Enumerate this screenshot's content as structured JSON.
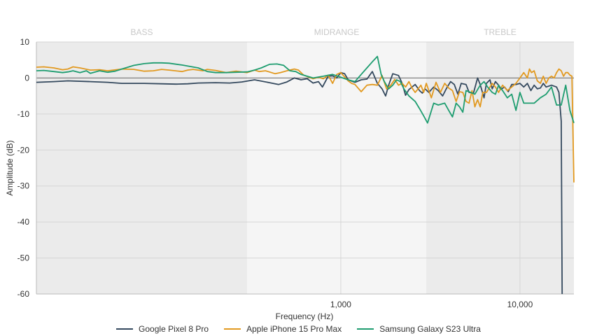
{
  "chart_data": {
    "type": "line",
    "xlabel": "Frequency (Hz)",
    "ylabel": "Amplitude (dB)",
    "x_scale": "log",
    "xlim": [
      20,
      20000
    ],
    "ylim": [
      -60,
      10
    ],
    "x_ticks": [
      {
        "value": 1000,
        "label": "1,000"
      },
      {
        "value": 10000,
        "label": "10,000"
      }
    ],
    "y_ticks": [
      {
        "value": 10,
        "label": "10"
      },
      {
        "value": 0,
        "label": "0"
      },
      {
        "value": -10,
        "label": "-10"
      },
      {
        "value": -20,
        "label": "-20"
      },
      {
        "value": -30,
        "label": "-30"
      },
      {
        "value": -40,
        "label": "-40"
      },
      {
        "value": -50,
        "label": "-50"
      },
      {
        "value": -60,
        "label": "-60"
      }
    ],
    "bands": [
      {
        "label": "BASS",
        "from": 20,
        "to": 300,
        "color": "#ebebeb"
      },
      {
        "label": "MIDRANGE",
        "from": 300,
        "to": 3000,
        "color": "#f5f5f5"
      },
      {
        "label": "TREBLE",
        "from": 3000,
        "to": 20000,
        "color": "#ebebeb"
      }
    ],
    "grid": true,
    "legend_position": "bottom",
    "series": [
      {
        "name": "Google Pixel 8 Pro",
        "color": "#34495e",
        "points": [
          [
            20,
            -1.2
          ],
          [
            25,
            -1.0
          ],
          [
            30,
            -0.8
          ],
          [
            40,
            -1.0
          ],
          [
            50,
            -1.2
          ],
          [
            60,
            -1.5
          ],
          [
            70,
            -1.5
          ],
          [
            80,
            -1.5
          ],
          [
            100,
            -1.6
          ],
          [
            120,
            -1.7
          ],
          [
            140,
            -1.6
          ],
          [
            160,
            -1.4
          ],
          [
            200,
            -1.3
          ],
          [
            240,
            -1.4
          ],
          [
            280,
            -1.1
          ],
          [
            330,
            -0.5
          ],
          [
            400,
            -1.3
          ],
          [
            450,
            -1.8
          ],
          [
            500,
            -1.1
          ],
          [
            550,
            0.0
          ],
          [
            600,
            -0.5
          ],
          [
            650,
            -0.2
          ],
          [
            700,
            -1.4
          ],
          [
            750,
            -1.0
          ],
          [
            790,
            -2.5
          ],
          [
            850,
            0.5
          ],
          [
            900,
            0.6
          ],
          [
            950,
            0.0
          ],
          [
            1000,
            1.5
          ],
          [
            1050,
            1.2
          ],
          [
            1100,
            -0.5
          ],
          [
            1200,
            -1.2
          ],
          [
            1300,
            -0.5
          ],
          [
            1400,
            -0.3
          ],
          [
            1500,
            1.8
          ],
          [
            1600,
            -1.5
          ],
          [
            1700,
            -3.0
          ],
          [
            1780,
            -5.0
          ],
          [
            1850,
            -2.0
          ],
          [
            1950,
            1.2
          ],
          [
            2100,
            0.7
          ],
          [
            2200,
            -1.5
          ],
          [
            2300,
            -4.8
          ],
          [
            2400,
            -3.2
          ],
          [
            2600,
            -1.8
          ],
          [
            2750,
            -3.5
          ],
          [
            2850,
            -4.2
          ],
          [
            2950,
            -3.0
          ],
          [
            3100,
            -4.0
          ],
          [
            3300,
            -2.5
          ],
          [
            3500,
            -3.5
          ],
          [
            3700,
            -5.0
          ],
          [
            3900,
            -2.8
          ],
          [
            4100,
            -1.0
          ],
          [
            4300,
            -1.8
          ],
          [
            4500,
            -4.5
          ],
          [
            4700,
            -1.5
          ],
          [
            5000,
            -1.8
          ],
          [
            5200,
            -4.0
          ],
          [
            5500,
            -4.2
          ],
          [
            5800,
            0.0
          ],
          [
            6000,
            -1.8
          ],
          [
            6300,
            -5.5
          ],
          [
            6500,
            -1.5
          ],
          [
            6800,
            -0.5
          ],
          [
            7000,
            -3.0
          ],
          [
            7300,
            -1.0
          ],
          [
            7600,
            -2.0
          ],
          [
            7800,
            -3.2
          ],
          [
            8200,
            -2.5
          ],
          [
            8600,
            -3.8
          ],
          [
            9000,
            -1.8
          ],
          [
            9500,
            -1.8
          ],
          [
            10000,
            -1.5
          ],
          [
            10500,
            -2.5
          ],
          [
            11000,
            -1.5
          ],
          [
            11500,
            -3.5
          ],
          [
            12000,
            -2.0
          ],
          [
            12500,
            -3.0
          ],
          [
            13000,
            -2.8
          ],
          [
            13500,
            -1.5
          ],
          [
            14000,
            -2.5
          ],
          [
            15000,
            -2.0
          ],
          [
            16000,
            -2.5
          ],
          [
            16500,
            -4.0
          ],
          [
            17000,
            -12.0
          ],
          [
            17200,
            -60
          ]
        ]
      },
      {
        "name": "Apple iPhone 15 Pro Max",
        "color": "#e2991f",
        "points": [
          [
            20,
            3.0
          ],
          [
            22,
            3.1
          ],
          [
            25,
            2.8
          ],
          [
            28,
            2.3
          ],
          [
            30,
            2.5
          ],
          [
            32,
            3.1
          ],
          [
            35,
            2.8
          ],
          [
            40,
            2.2
          ],
          [
            45,
            2.3
          ],
          [
            50,
            2.0
          ],
          [
            60,
            2.5
          ],
          [
            70,
            2.4
          ],
          [
            80,
            1.9
          ],
          [
            90,
            2.0
          ],
          [
            100,
            2.4
          ],
          [
            110,
            2.2
          ],
          [
            130,
            1.8
          ],
          [
            140,
            2.2
          ],
          [
            150,
            2.4
          ],
          [
            170,
            2.0
          ],
          [
            180,
            2.4
          ],
          [
            200,
            2.1
          ],
          [
            230,
            1.5
          ],
          [
            260,
            1.9
          ],
          [
            300,
            1.5
          ],
          [
            330,
            2.2
          ],
          [
            350,
            1.8
          ],
          [
            380,
            2.0
          ],
          [
            430,
            1.2
          ],
          [
            460,
            1.5
          ],
          [
            500,
            2.0
          ],
          [
            550,
            2.5
          ],
          [
            580,
            2.2
          ],
          [
            620,
            0.8
          ],
          [
            700,
            -0.2
          ],
          [
            750,
            0.2
          ],
          [
            800,
            -0.2
          ],
          [
            850,
            0.8
          ],
          [
            900,
            -1.5
          ],
          [
            950,
            1.0
          ],
          [
            1000,
            1.5
          ],
          [
            1050,
            0.3
          ],
          [
            1100,
            -0.8
          ],
          [
            1150,
            -1.5
          ],
          [
            1200,
            -1.8
          ],
          [
            1300,
            -3.8
          ],
          [
            1400,
            -2.0
          ],
          [
            1500,
            -1.8
          ],
          [
            1600,
            -2.0
          ],
          [
            1700,
            0.7
          ],
          [
            1800,
            -3.0
          ],
          [
            1900,
            -2.0
          ],
          [
            2000,
            -0.4
          ],
          [
            2100,
            -2.0
          ],
          [
            2200,
            -1.5
          ],
          [
            2300,
            -2.5
          ],
          [
            2400,
            -1.0
          ],
          [
            2500,
            -2.8
          ],
          [
            2600,
            -4.0
          ],
          [
            2700,
            -3.0
          ],
          [
            2800,
            -2.0
          ],
          [
            2900,
            -4.0
          ],
          [
            3000,
            -1.5
          ],
          [
            3200,
            -5.5
          ],
          [
            3400,
            -1.2
          ],
          [
            3600,
            -4.0
          ],
          [
            3800,
            -1.5
          ],
          [
            4000,
            -2.8
          ],
          [
            4200,
            -3.5
          ],
          [
            4400,
            -6.5
          ],
          [
            4600,
            -3.8
          ],
          [
            4800,
            -4.0
          ],
          [
            5000,
            -6.5
          ],
          [
            5200,
            -7.0
          ],
          [
            5400,
            -3.5
          ],
          [
            5600,
            -8.0
          ],
          [
            5800,
            -6.0
          ],
          [
            6000,
            -8.0
          ],
          [
            6200,
            -4.0
          ],
          [
            6500,
            -4.0
          ],
          [
            6800,
            -2.5
          ],
          [
            7000,
            -1.5
          ],
          [
            7300,
            -2.5
          ],
          [
            7600,
            -4.0
          ],
          [
            8000,
            -2.0
          ],
          [
            8500,
            -3.5
          ],
          [
            9000,
            -2.5
          ],
          [
            9500,
            -1.5
          ],
          [
            10000,
            0.0
          ],
          [
            10500,
            1.5
          ],
          [
            11000,
            0.0
          ],
          [
            11300,
            2.5
          ],
          [
            11600,
            1.5
          ],
          [
            12000,
            2.0
          ],
          [
            12500,
            -0.8
          ],
          [
            13000,
            -1.5
          ],
          [
            13500,
            0.5
          ],
          [
            14000,
            -1.5
          ],
          [
            14500,
            0.0
          ],
          [
            15000,
            0.5
          ],
          [
            15500,
            0.0
          ],
          [
            16000,
            1.5
          ],
          [
            16500,
            2.5
          ],
          [
            17000,
            2.0
          ],
          [
            17500,
            0.5
          ],
          [
            18000,
            1.5
          ],
          [
            18500,
            1.5
          ],
          [
            19000,
            0.8
          ],
          [
            19500,
            0.5
          ],
          [
            20000,
            -29.0
          ]
        ]
      },
      {
        "name": "Samsung Galaxy S23 Ultra",
        "color": "#1e9d70",
        "points": [
          [
            20,
            2.0
          ],
          [
            22,
            2.1
          ],
          [
            25,
            1.8
          ],
          [
            28,
            1.5
          ],
          [
            30,
            1.7
          ],
          [
            32,
            2.0
          ],
          [
            35,
            1.5
          ],
          [
            38,
            2.0
          ],
          [
            40,
            1.3
          ],
          [
            45,
            2.0
          ],
          [
            50,
            1.6
          ],
          [
            55,
            1.9
          ],
          [
            60,
            2.5
          ],
          [
            70,
            3.5
          ],
          [
            80,
            4.0
          ],
          [
            90,
            4.2
          ],
          [
            100,
            4.2
          ],
          [
            110,
            4.1
          ],
          [
            130,
            3.6
          ],
          [
            160,
            2.8
          ],
          [
            180,
            1.8
          ],
          [
            200,
            1.5
          ],
          [
            230,
            1.5
          ],
          [
            260,
            1.6
          ],
          [
            300,
            1.7
          ],
          [
            330,
            2.2
          ],
          [
            360,
            2.8
          ],
          [
            400,
            3.8
          ],
          [
            440,
            3.9
          ],
          [
            480,
            3.5
          ],
          [
            520,
            2.0
          ],
          [
            560,
            1.8
          ],
          [
            600,
            1.0
          ],
          [
            700,
            0.0
          ],
          [
            800,
            0.5
          ],
          [
            900,
            1.0
          ],
          [
            1000,
            0.2
          ],
          [
            1100,
            -0.5
          ],
          [
            1200,
            -1.0
          ],
          [
            1300,
            1.0
          ],
          [
            1400,
            2.8
          ],
          [
            1500,
            4.5
          ],
          [
            1600,
            6.0
          ],
          [
            1680,
            1.0
          ],
          [
            1750,
            -1.0
          ],
          [
            1850,
            -3.0
          ],
          [
            1950,
            -2.0
          ],
          [
            2050,
            -0.5
          ],
          [
            2150,
            -1.0
          ],
          [
            2250,
            -3.0
          ],
          [
            2400,
            -5.0
          ],
          [
            2600,
            -6.5
          ],
          [
            2750,
            -8.5
          ],
          [
            2900,
            -10.5
          ],
          [
            3050,
            -12.5
          ],
          [
            3300,
            -7.0
          ],
          [
            3500,
            -7.5
          ],
          [
            3800,
            -7.0
          ],
          [
            4000,
            -9.0
          ],
          [
            4200,
            -10.8
          ],
          [
            4400,
            -7.0
          ],
          [
            4600,
            -8.0
          ],
          [
            4800,
            -9.5
          ],
          [
            5000,
            -3.5
          ],
          [
            5300,
            -4.0
          ],
          [
            5600,
            -4.5
          ],
          [
            6000,
            -2.0
          ],
          [
            6300,
            -1.0
          ],
          [
            6600,
            -2.5
          ],
          [
            7000,
            -4.0
          ],
          [
            7300,
            -4.5
          ],
          [
            7600,
            -2.0
          ],
          [
            8000,
            -3.5
          ],
          [
            8500,
            -5.5
          ],
          [
            9000,
            -4.5
          ],
          [
            9500,
            -9.0
          ],
          [
            10000,
            -4.0
          ],
          [
            10500,
            -7.0
          ],
          [
            11000,
            -7.0
          ],
          [
            12000,
            -7.0
          ],
          [
            13000,
            -5.5
          ],
          [
            14000,
            -4.5
          ],
          [
            15000,
            -2.5
          ],
          [
            16000,
            -7.5
          ],
          [
            17000,
            -7.5
          ],
          [
            18000,
            -2.0
          ],
          [
            19000,
            -9.0
          ],
          [
            20000,
            -12.5
          ]
        ]
      }
    ]
  }
}
